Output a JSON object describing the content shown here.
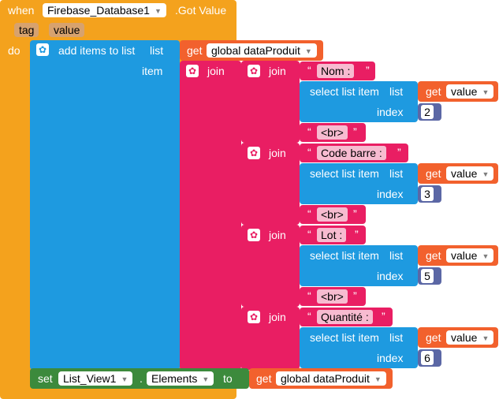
{
  "event": {
    "when": "when",
    "component": "Firebase_Database1",
    "event_name": ".Got Value",
    "param1": "tag",
    "param2": "value",
    "do": "do"
  },
  "add_items": {
    "label": "add items to list",
    "list_socket": "list",
    "item_socket": "item",
    "get": "get",
    "var": "global dataProduit"
  },
  "join": {
    "label": "join"
  },
  "select": {
    "label": "select list item",
    "list_socket": "list",
    "index_socket": "index",
    "get": "get",
    "var": "value"
  },
  "quote_open": "“",
  "quote_close": "”",
  "fields": [
    {
      "label": "Nom :",
      "index": "2"
    },
    {
      "label": "Code barre :",
      "index": "3"
    },
    {
      "label": "Lot :",
      "index": "5"
    },
    {
      "label": "Quantité :",
      "index": "6"
    }
  ],
  "br": "<br>",
  "setter": {
    "set": "set",
    "component": "List_View1",
    "dot": ".",
    "property": "Elements",
    "to": "to",
    "get": "get",
    "var": "global dataProduit"
  },
  "colors": {
    "event": "#f4a21d",
    "list": "#1e9ae0",
    "text": "#e91e63",
    "variable": "#f2612d",
    "math": "#5b67a5",
    "component": "#3c8a3c",
    "dropdown_bg": "#ffffff"
  }
}
